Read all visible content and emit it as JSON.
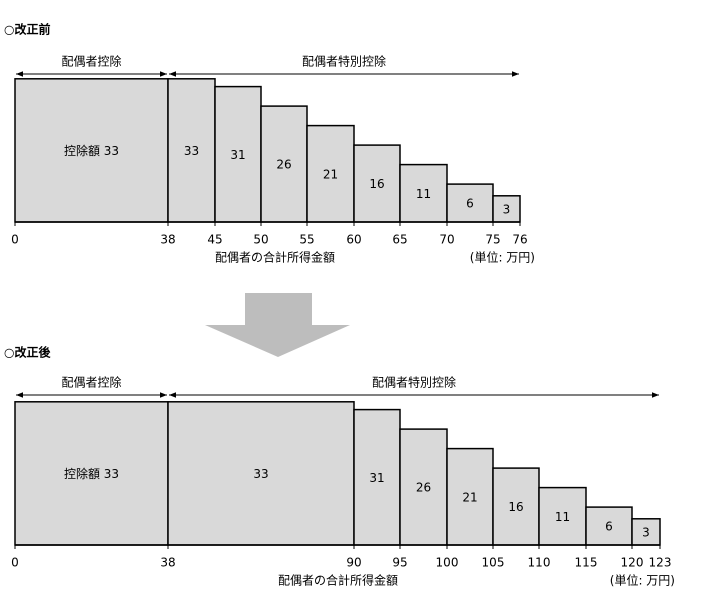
{
  "chart_data": [
    {
      "type": "histogram",
      "title": "○改正前",
      "bins": [
        0,
        38,
        45,
        50,
        55,
        60,
        65,
        70,
        75,
        76
      ],
      "values": [
        33,
        33,
        31,
        26,
        21,
        16,
        11,
        6,
        3
      ],
      "value_labels": [
        "控除額 33",
        "33",
        "31",
        "26",
        "21",
        "16",
        "11",
        "6",
        "3"
      ],
      "xticks": [
        0,
        38,
        45,
        50,
        55,
        60,
        65,
        70,
        75,
        76
      ],
      "xlabel": "配偶者の合計所得金額",
      "unit": "(単位: 万円)",
      "color": "#d9d9d9",
      "spans": [
        {
          "label": "配偶者控除",
          "from": 0,
          "to": 38
        },
        {
          "label": "配偶者特別控除",
          "from": 38,
          "to": 76
        }
      ]
    },
    {
      "type": "histogram",
      "title": "○改正後",
      "bins": [
        0,
        38,
        90,
        95,
        100,
        105,
        110,
        115,
        120,
        123
      ],
      "values": [
        33,
        33,
        31,
        26,
        21,
        16,
        11,
        6,
        3
      ],
      "value_labels": [
        "控除額 33",
        "33",
        "31",
        "26",
        "21",
        "16",
        "11",
        "6",
        "3"
      ],
      "xticks": [
        0,
        38,
        90,
        95,
        100,
        105,
        110,
        115,
        120,
        123
      ],
      "xlabel": "配偶者の合計所得金額",
      "unit": "(単位: 万円)",
      "color": "#d9d9d9",
      "spans": [
        {
          "label": "配偶者控除",
          "from": 0,
          "to": 38
        },
        {
          "label": "配偶者特別控除",
          "from": 38,
          "to": 123
        }
      ]
    }
  ]
}
